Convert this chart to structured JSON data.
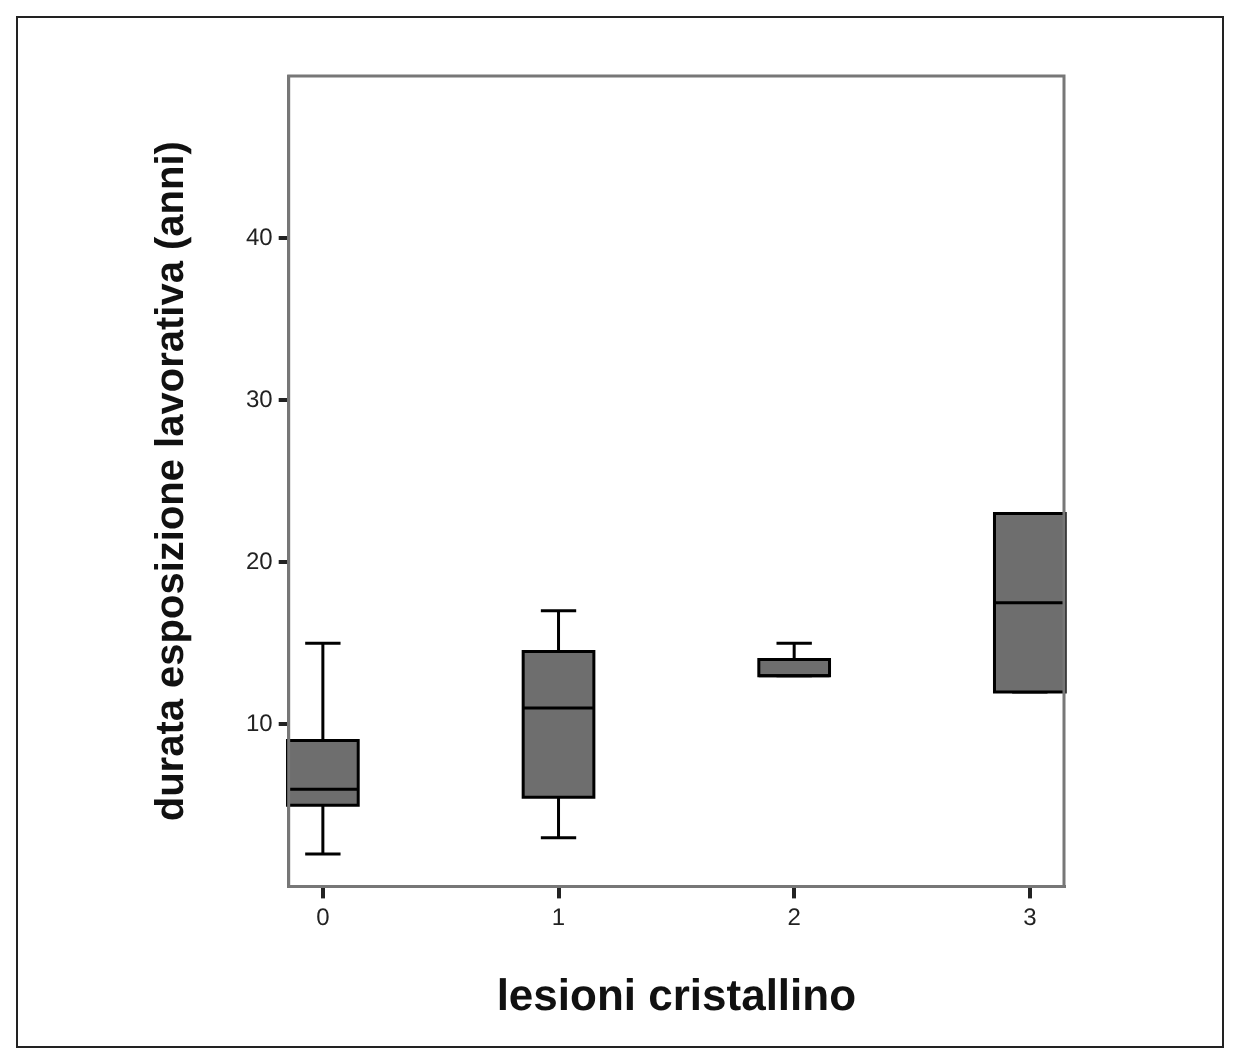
{
  "chart_data": {
    "type": "box",
    "xlabel": "lesioni cristallino",
    "ylabel": "durata esposizione lavorativa (anni)",
    "categories": [
      "0",
      "1",
      "2",
      "3"
    ],
    "boxes": [
      {
        "low": 2,
        "q1": 5,
        "median": 6,
        "q3": 9,
        "high": 15
      },
      {
        "low": 3,
        "q1": 5.5,
        "median": 11,
        "q3": 14.5,
        "high": 17
      },
      {
        "low": 13,
        "q1": 13,
        "median": 13,
        "q3": 14,
        "high": 15
      },
      {
        "low": 12,
        "q1": 12,
        "median": 17.5,
        "q3": 23,
        "high": 23
      }
    ],
    "color": "#6e6e6e",
    "ylim": [
      0,
      50
    ],
    "yticks": [
      10,
      20,
      30,
      40
    ],
    "grid": false,
    "legend": false
  }
}
